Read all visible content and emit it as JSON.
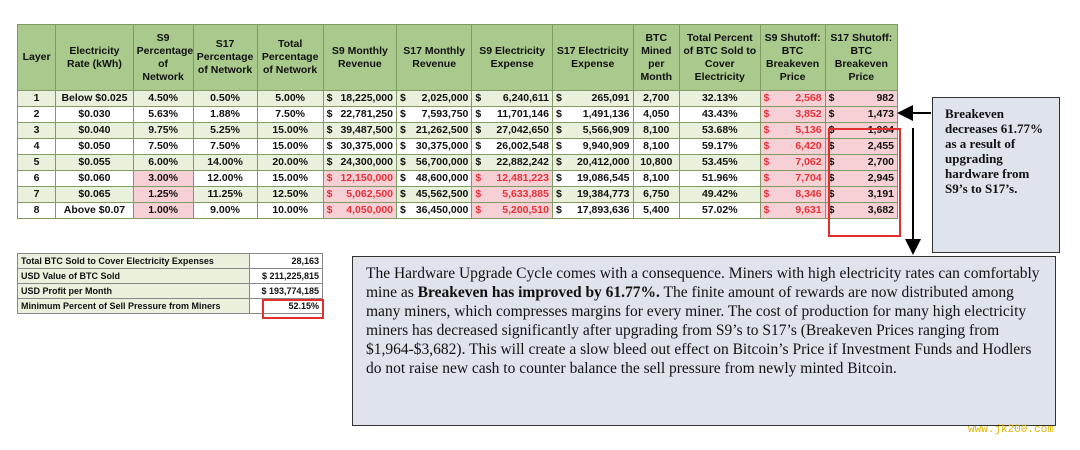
{
  "main_table": {
    "headers": [
      "Layer",
      "Electricity Rate (kWh)",
      "S9 Percentage of Network",
      "S17 Percentage of Network",
      "Total Percentage of Network",
      "S9 Monthly Revenue",
      "S17 Monthly Revenue",
      "S9 Electricity Expense",
      "S17 Electricity Expense",
      "BTC Mined per Month",
      "Total Percent of BTC Sold to Cover Electricity",
      "S9 Shutoff: BTC Breakeven Price",
      "S17 Shutoff: BTC Breakeven Price"
    ],
    "rows": [
      {
        "layer": "1",
        "rate": "Below $0.025",
        "s9_pct": "4.50%",
        "s17_pct": "0.50%",
        "total_pct": "5.00%",
        "s9_rev": "18,225,000",
        "s17_rev": "2,025,000",
        "s9_exp": "6,240,611",
        "s17_exp": "265,091",
        "btc": "2,700",
        "sold_pct": "32.13%",
        "s9_be": "2,568",
        "s17_be": "982"
      },
      {
        "layer": "2",
        "rate": "$0.030",
        "s9_pct": "5.63%",
        "s17_pct": "1.88%",
        "total_pct": "7.50%",
        "s9_rev": "22,781,250",
        "s17_rev": "7,593,750",
        "s9_exp": "11,701,146",
        "s17_exp": "1,491,136",
        "btc": "4,050",
        "sold_pct": "43.43%",
        "s9_be": "3,852",
        "s17_be": "1,473"
      },
      {
        "layer": "3",
        "rate": "$0.040",
        "s9_pct": "9.75%",
        "s17_pct": "5.25%",
        "total_pct": "15.00%",
        "s9_rev": "39,487,500",
        "s17_rev": "21,262,500",
        "s9_exp": "27,042,650",
        "s17_exp": "5,566,909",
        "btc": "8,100",
        "sold_pct": "53.68%",
        "s9_be": "5,136",
        "s17_be": "1,964"
      },
      {
        "layer": "4",
        "rate": "$0.050",
        "s9_pct": "7.50%",
        "s17_pct": "7.50%",
        "total_pct": "15.00%",
        "s9_rev": "30,375,000",
        "s17_rev": "30,375,000",
        "s9_exp": "26,002,548",
        "s17_exp": "9,940,909",
        "btc": "8,100",
        "sold_pct": "59.17%",
        "s9_be": "6,420",
        "s17_be": "2,455"
      },
      {
        "layer": "5",
        "rate": "$0.055",
        "s9_pct": "6.00%",
        "s17_pct": "14.00%",
        "total_pct": "20.00%",
        "s9_rev": "24,300,000",
        "s17_rev": "56,700,000",
        "s9_exp": "22,882,242",
        "s17_exp": "20,412,000",
        "btc": "10,800",
        "sold_pct": "53.45%",
        "s9_be": "7,062",
        "s17_be": "2,700"
      },
      {
        "layer": "6",
        "rate": "$0.060",
        "s9_pct": "3.00%",
        "s17_pct": "12.00%",
        "total_pct": "15.00%",
        "s9_rev": "12,150,000",
        "s17_rev": "48,600,000",
        "s9_exp": "12,481,223",
        "s17_exp": "19,086,545",
        "btc": "8,100",
        "sold_pct": "51.96%",
        "s9_be": "7,704",
        "s17_be": "2,945"
      },
      {
        "layer": "7",
        "rate": "$0.065",
        "s9_pct": "1.25%",
        "s17_pct": "11.25%",
        "total_pct": "12.50%",
        "s9_rev": "5,062,500",
        "s17_rev": "45,562,500",
        "s9_exp": "5,633,885",
        "s17_exp": "19,384,773",
        "btc": "6,750",
        "sold_pct": "49.42%",
        "s9_be": "8,346",
        "s17_be": "3,191"
      },
      {
        "layer": "8",
        "rate": "Above $0.07",
        "s9_pct": "1.00%",
        "s17_pct": "9.00%",
        "total_pct": "10.00%",
        "s9_rev": "4,050,000",
        "s17_rev": "36,450,000",
        "s9_exp": "5,200,510",
        "s17_exp": "17,893,636",
        "btc": "5,400",
        "sold_pct": "57.02%",
        "s9_be": "9,631",
        "s17_be": "3,682"
      }
    ],
    "currency_symbol": "$"
  },
  "summary_table": [
    {
      "label": "Total BTC Sold to Cover Electricity Expenses",
      "value": "28,163"
    },
    {
      "label": "USD Value of BTC Sold",
      "value": "$ 211,225,815"
    },
    {
      "label": "USD Profit per Month",
      "value": "$ 193,774,185"
    },
    {
      "label": "Minimum Percent of Sell Pressure from Miners",
      "value": "52.15%"
    }
  ],
  "callout": {
    "text": "Breakeven decreases 61.77% as a result of upgrading hardware from S9’s to S17’s."
  },
  "textbox": {
    "before": "The Hardware Upgrade Cycle comes with a consequence. Miners with high electricity rates can comfortably mine as ",
    "bold": "Breakeven has improved by 61.77%.",
    "after": " The finite amount of rewards are now distributed among many miners, which compresses margins for every miner. The cost of production for many high electricity miners has decreased significantly after upgrading from S9’s to S17’s (Breakeven Prices ranging from $1,964-$3,682). This will create a slow bleed out effect on Bitcoin’s Price if Investment Funds and Hodlers do not raise new cash to counter balance the sell pressure from newly minted Bitcoin."
  },
  "watermark": "www.jk200.com",
  "colors": {
    "header_green": "#a9c98d",
    "row_green": "#e9f1dd",
    "pink": "#f6d0d4",
    "red_text": "#e8323a",
    "box_bg": "#dfe3ec",
    "watermark": "#e0b400"
  }
}
